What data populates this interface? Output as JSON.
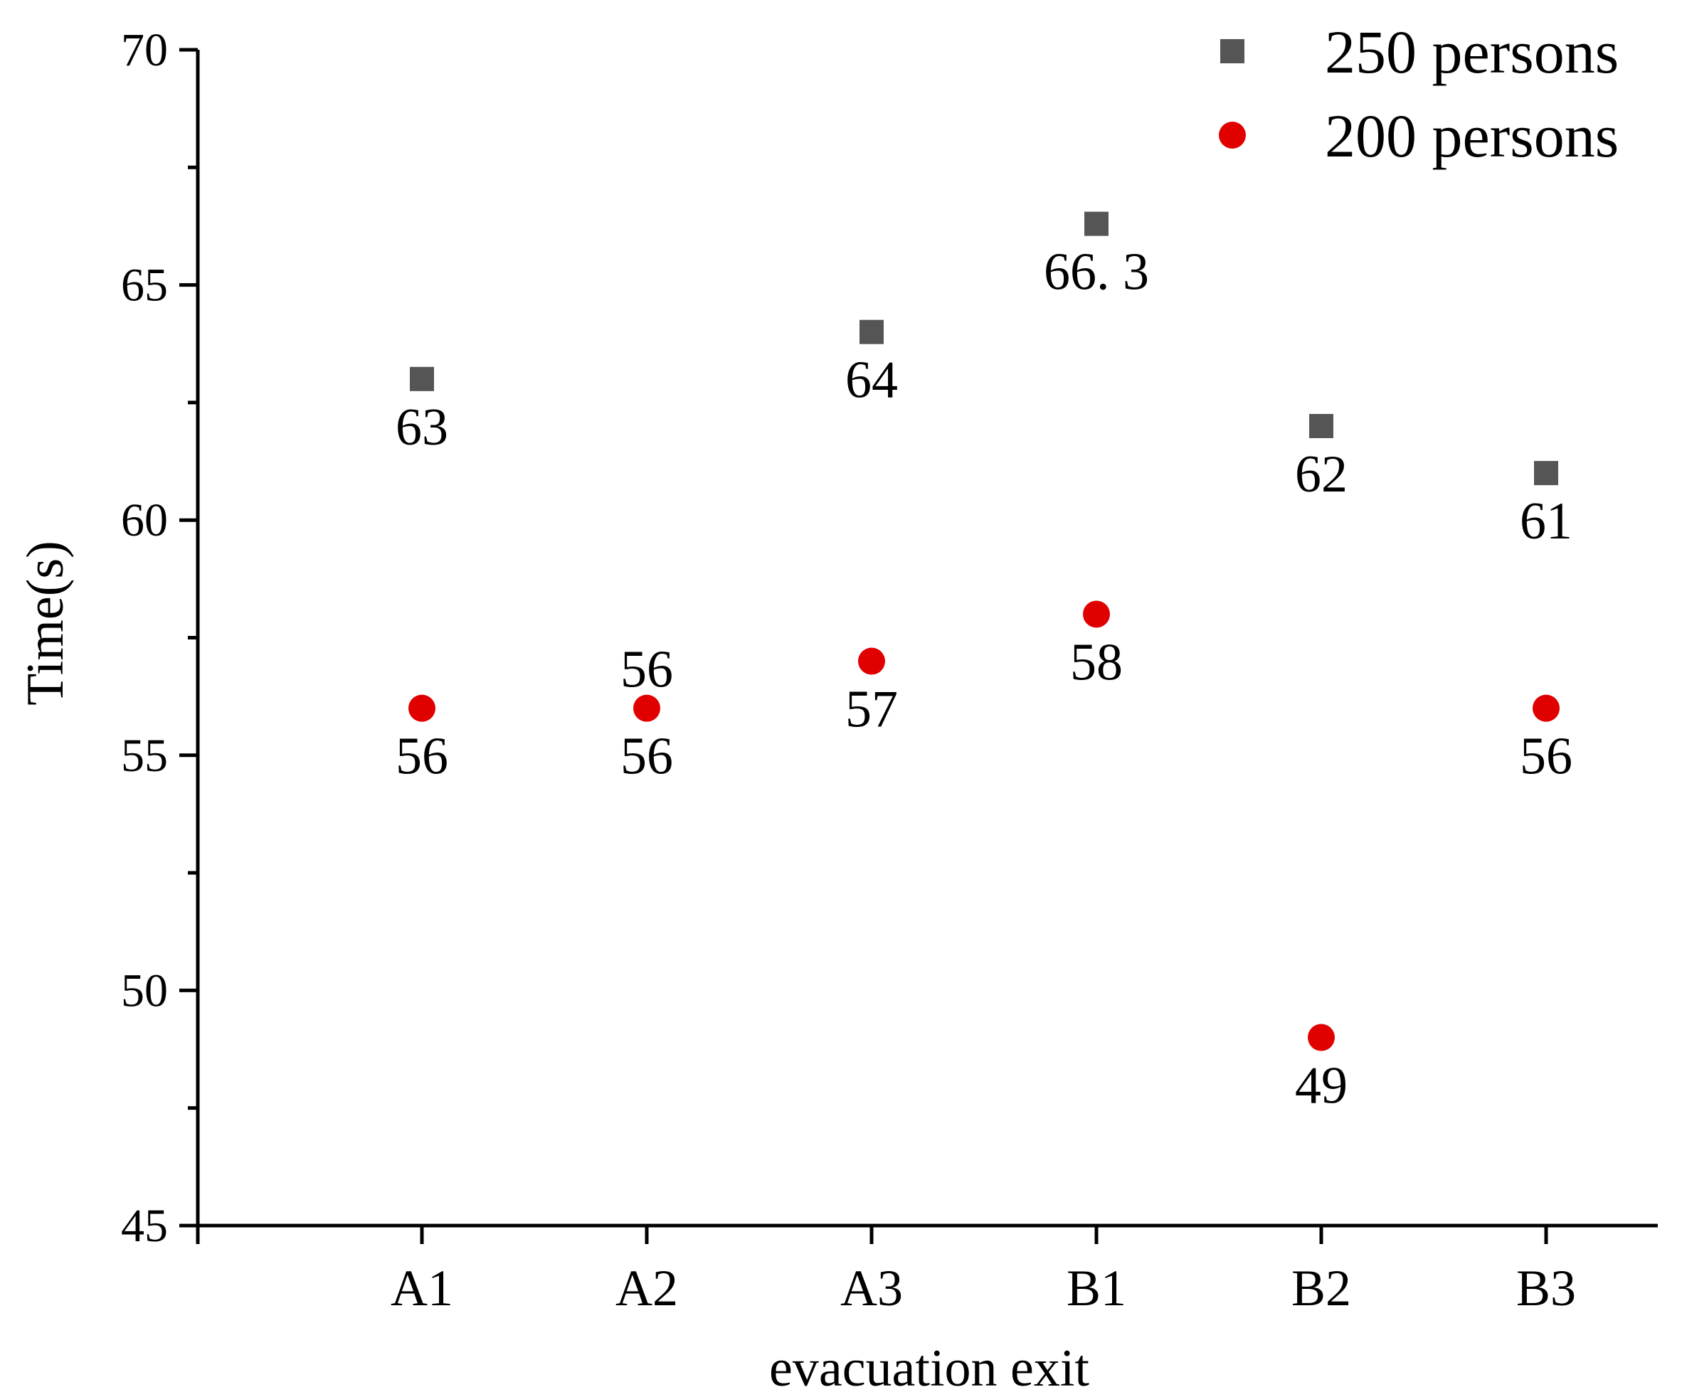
{
  "chart_data": {
    "type": "scatter",
    "title": "",
    "xlabel": "evacuation exit",
    "ylabel": "Time(s)",
    "categories": [
      "A1",
      "A2",
      "A3",
      "B1",
      "B2",
      "B3"
    ],
    "ylim": [
      45,
      70
    ],
    "yticks": [
      45,
      50,
      55,
      60,
      65,
      70
    ],
    "grid": false,
    "legend_position": "top-right",
    "series": [
      {
        "name": "250 persons",
        "marker": "square",
        "color": "#555555",
        "values": [
          63,
          null,
          64,
          66.3,
          62,
          61
        ],
        "labels": [
          "63",
          "",
          "64",
          "66. 3",
          "62",
          "61"
        ]
      },
      {
        "name": "200 persons",
        "marker": "circle",
        "color": "#e00000",
        "values": [
          56,
          56,
          57,
          58,
          49,
          56
        ],
        "labels": [
          "56",
          "56",
          "57",
          "58",
          "49",
          "56"
        ]
      }
    ],
    "annotations": [
      {
        "category": "A2",
        "value": 56,
        "text": "56",
        "placement": "above"
      }
    ]
  }
}
